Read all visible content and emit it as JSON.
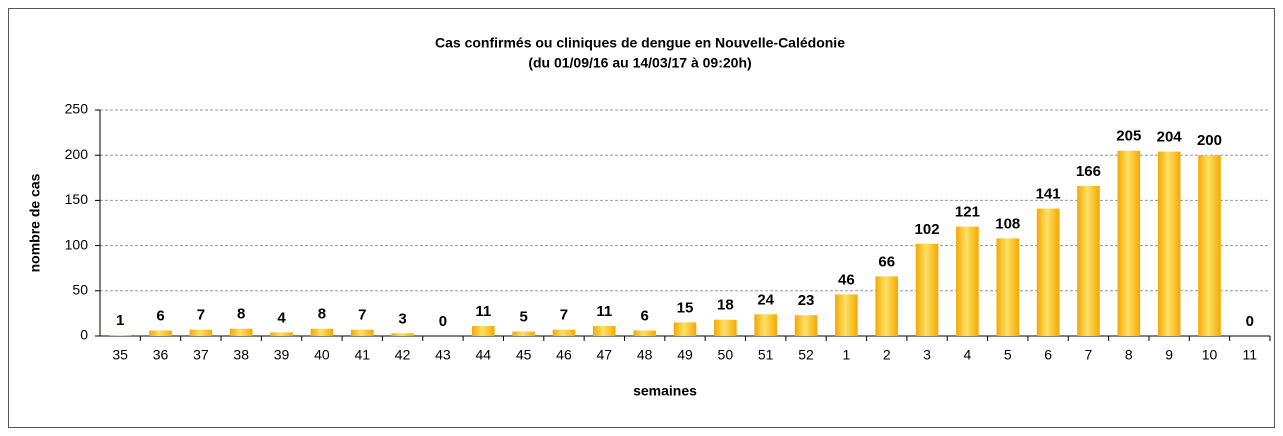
{
  "chart_data": {
    "type": "bar",
    "title": "Cas confirmés ou cliniques de dengue en Nouvelle-Calédonie",
    "subtitle": "(du  01/09/16 au 14/03/17 à 09:20h)",
    "x_label": "semaines",
    "y_label": "nombre de cas",
    "categories": [
      "35",
      "36",
      "37",
      "38",
      "39",
      "40",
      "41",
      "42",
      "43",
      "44",
      "45",
      "46",
      "47",
      "48",
      "49",
      "50",
      "51",
      "52",
      "1",
      "2",
      "3",
      "4",
      "5",
      "6",
      "7",
      "8",
      "9",
      "10",
      "11"
    ],
    "values": [
      1,
      6,
      7,
      8,
      4,
      8,
      7,
      3,
      0,
      11,
      5,
      7,
      11,
      6,
      15,
      18,
      24,
      23,
      46,
      66,
      102,
      121,
      108,
      141,
      166,
      205,
      204,
      200,
      0
    ],
    "color": "#f5a800",
    "ylim": [
      0,
      250
    ],
    "yticks": [
      0,
      50,
      100,
      150,
      200,
      250
    ],
    "grid": true
  }
}
